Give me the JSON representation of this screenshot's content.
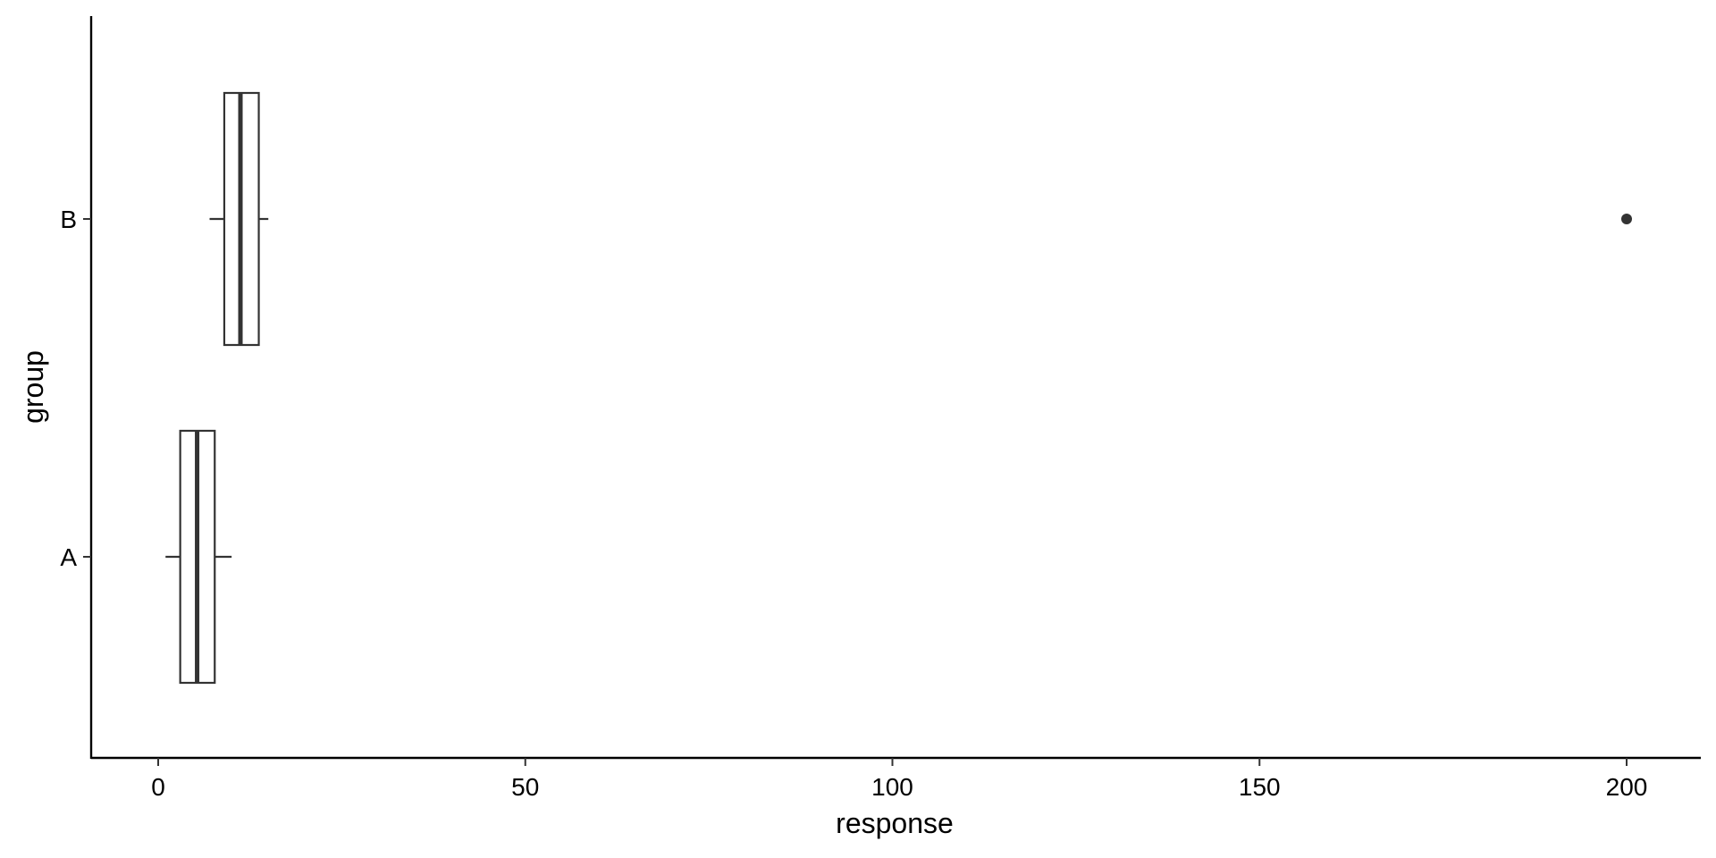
{
  "chart_data": {
    "type": "boxplot",
    "orientation": "horizontal",
    "title": "",
    "xlabel": "response",
    "ylabel": "group",
    "xlim": [
      -9,
      210
    ],
    "x_ticks": [
      0,
      50,
      100,
      150,
      200
    ],
    "x_tick_labels": [
      "0",
      "50",
      "100",
      "150",
      "200"
    ],
    "categories": [
      "A",
      "B"
    ],
    "boxes": [
      {
        "group": "A",
        "whisker_low": 1,
        "q1": 3,
        "median": 5.3,
        "q3": 7.7,
        "whisker_high": 10,
        "outliers": []
      },
      {
        "group": "B",
        "whisker_low": 7,
        "q1": 9,
        "median": 11.2,
        "q3": 13.7,
        "whisker_high": 15,
        "outliers": [
          200
        ]
      }
    ],
    "grid": false,
    "colors": {
      "box_stroke": "#333333",
      "box_fill": "#ffffff",
      "axis": "#000000"
    }
  }
}
